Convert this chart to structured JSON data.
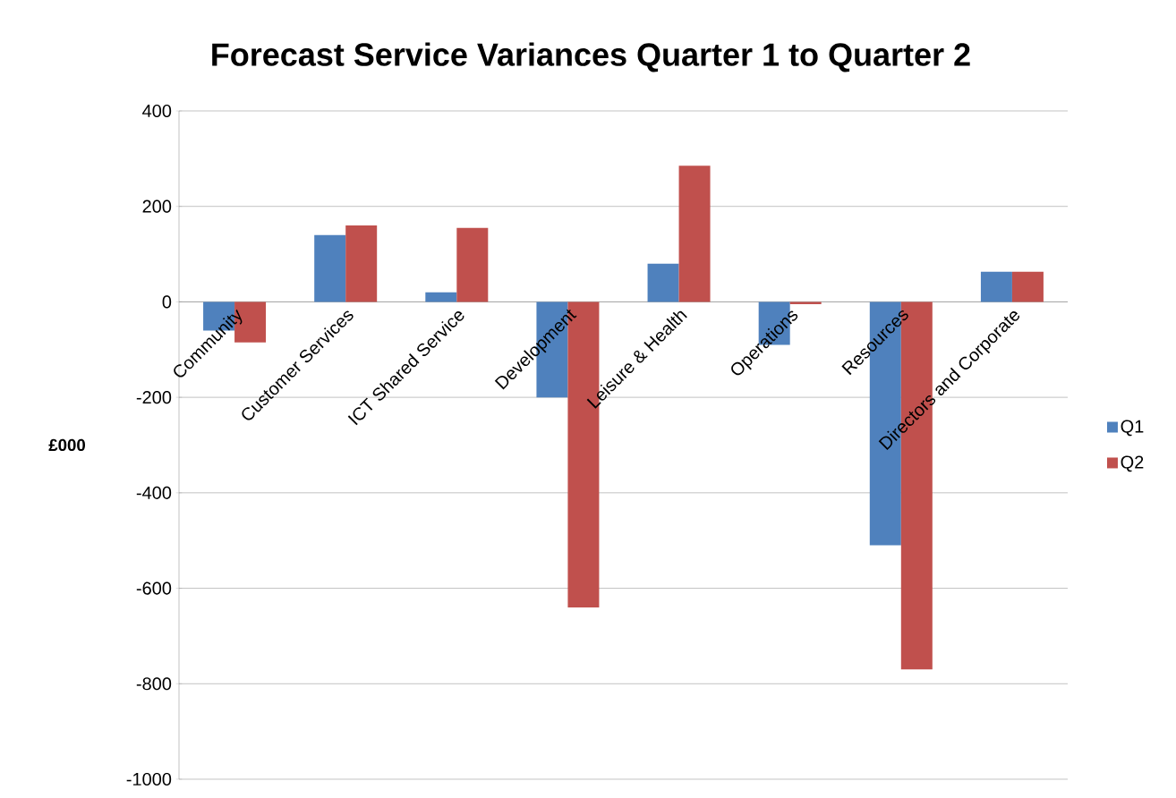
{
  "chart_data": {
    "type": "bar",
    "title": "Forecast Service Variances Quarter 1 to Quarter 2",
    "ylabel": "£000",
    "categories": [
      "Community",
      "Customer Services",
      "ICT Shared Service",
      "Development",
      "Leisure & Health",
      "Operations",
      "Resources",
      "Directors and Corporate"
    ],
    "series": [
      {
        "name": "Q1",
        "color": "#4f81bd",
        "values": [
          -60,
          140,
          20,
          -200,
          80,
          -90,
          -510,
          63
        ]
      },
      {
        "name": "Q2",
        "color": "#c0504d",
        "values": [
          -85,
          160,
          155,
          -640,
          285,
          -5,
          -770,
          63
        ]
      }
    ],
    "ylim": [
      -1000,
      400
    ],
    "yticks": [
      -1000,
      -800,
      -600,
      -400,
      -200,
      0,
      200,
      400
    ],
    "grid": "y",
    "legend": "right"
  }
}
